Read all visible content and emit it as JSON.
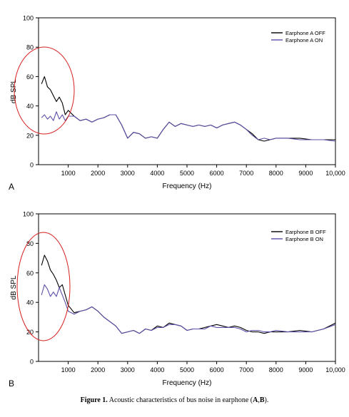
{
  "chart_data": [
    {
      "type": "line",
      "panel_label": "A",
      "xlabel": "Frequency (Hz)",
      "ylabel": "dB SPL",
      "xlim": [
        0,
        10000
      ],
      "ylim": [
        0,
        100
      ],
      "xticks": [
        1000,
        2000,
        3000,
        4000,
        5000,
        6000,
        7000,
        8000,
        9000,
        10000
      ],
      "xtick_labels": [
        "1000",
        "2000",
        "3000",
        "4000",
        "5000",
        "6000",
        "7000",
        "8000",
        "9000",
        "10,000"
      ],
      "yticks": [
        0,
        20,
        40,
        60,
        80,
        100
      ],
      "ytick_labels": [
        "0",
        "20",
        "40",
        "60",
        "80",
        "100"
      ],
      "legend_position": "top-right",
      "series": [
        {
          "name": "Earphone A OFF",
          "color": "#000000",
          "x": [
            100,
            200,
            300,
            400,
            500,
            600,
            700,
            800,
            900,
            1000,
            1200,
            1400,
            1600,
            1800,
            2000,
            2200,
            2400,
            2600,
            2800,
            3000,
            3200,
            3400,
            3600,
            3800,
            4000,
            4200,
            4400,
            4600,
            4800,
            5000,
            5200,
            5400,
            5600,
            5800,
            6000,
            6200,
            6400,
            6600,
            6800,
            7000,
            7200,
            7400,
            7600,
            7800,
            8000,
            8400,
            8800,
            9200,
            9600,
            10000
          ],
          "y": [
            55,
            60,
            53,
            51,
            47,
            43,
            46,
            42,
            34,
            37,
            33,
            30,
            31,
            29,
            31,
            32,
            34,
            34,
            27,
            18,
            22,
            21,
            18,
            19,
            18,
            24,
            29,
            26,
            28,
            27,
            26,
            27,
            26,
            27,
            25,
            27,
            28,
            29,
            27,
            24,
            21,
            17,
            16,
            17,
            18,
            18,
            18,
            17,
            17,
            17
          ]
        },
        {
          "name": "Earphone A ON",
          "color": "#5b4fa8",
          "x": [
            100,
            200,
            300,
            400,
            500,
            600,
            700,
            800,
            900,
            1000,
            1200,
            1400,
            1600,
            1800,
            2000,
            2200,
            2400,
            2600,
            2800,
            3000,
            3200,
            3400,
            3600,
            3800,
            4000,
            4200,
            4400,
            4600,
            4800,
            5000,
            5200,
            5400,
            5600,
            5800,
            6000,
            6200,
            6400,
            6600,
            6800,
            7000,
            7200,
            7400,
            7600,
            7800,
            8000,
            8400,
            8800,
            9200,
            9600,
            10000
          ],
          "y": [
            32,
            34,
            31,
            33,
            30,
            36,
            31,
            34,
            30,
            33,
            33,
            30,
            31,
            29,
            31,
            32,
            34,
            34,
            27,
            18,
            22,
            21,
            18,
            19,
            18,
            24,
            29,
            26,
            28,
            27,
            26,
            27,
            26,
            27,
            25,
            27,
            28,
            29,
            27,
            24,
            20,
            17,
            18,
            17,
            18,
            18,
            17,
            17,
            17,
            16
          ]
        }
      ]
    },
    {
      "type": "line",
      "panel_label": "B",
      "xlabel": "Frequency (Hz)",
      "ylabel": "dB SPL",
      "xlim": [
        0,
        10000
      ],
      "ylim": [
        0,
        100
      ],
      "xticks": [
        1000,
        2000,
        3000,
        4000,
        5000,
        6000,
        7000,
        8000,
        9000,
        10000
      ],
      "xtick_labels": [
        "1000",
        "2000",
        "3000",
        "4000",
        "5000",
        "6000",
        "7000",
        "8000",
        "9000",
        "10,000"
      ],
      "yticks": [
        0,
        20,
        40,
        60,
        80,
        100
      ],
      "ytick_labels": [
        "0",
        "20",
        "40",
        "60",
        "80",
        "100"
      ],
      "legend_position": "top-right",
      "series": [
        {
          "name": "Earphone B OFF",
          "color": "#000000",
          "x": [
            100,
            200,
            300,
            400,
            500,
            600,
            700,
            800,
            900,
            1000,
            1200,
            1400,
            1600,
            1800,
            2000,
            2200,
            2400,
            2600,
            2800,
            3000,
            3200,
            3400,
            3600,
            3800,
            4000,
            4200,
            4400,
            4600,
            4800,
            5000,
            5200,
            5400,
            5600,
            5800,
            6000,
            6200,
            6400,
            6600,
            6800,
            7000,
            7200,
            7400,
            7600,
            7800,
            8000,
            8400,
            8800,
            9200,
            9600,
            10000
          ],
          "y": [
            65,
            72,
            68,
            62,
            59,
            55,
            50,
            52,
            45,
            38,
            33,
            34,
            35,
            37,
            34,
            30,
            27,
            24,
            19,
            20,
            21,
            19,
            22,
            21,
            24,
            23,
            26,
            25,
            24,
            21,
            22,
            22,
            23,
            24,
            25,
            24,
            23,
            24,
            23,
            21,
            20,
            20,
            19,
            20,
            20,
            20,
            21,
            20,
            22,
            26
          ]
        },
        {
          "name": "Earphone B ON",
          "color": "#5b4fa8",
          "x": [
            100,
            200,
            300,
            400,
            500,
            600,
            700,
            800,
            900,
            1000,
            1200,
            1400,
            1600,
            1800,
            2000,
            2200,
            2400,
            2600,
            2800,
            3000,
            3200,
            3400,
            3600,
            3800,
            4000,
            4200,
            4400,
            4600,
            4800,
            5000,
            5200,
            5400,
            5600,
            5800,
            6000,
            6200,
            6400,
            6600,
            6800,
            7000,
            7200,
            7400,
            7600,
            7800,
            8000,
            8400,
            8800,
            9200,
            9600,
            10000
          ],
          "y": [
            45,
            52,
            49,
            44,
            47,
            44,
            50,
            45,
            40,
            34,
            32,
            34,
            35,
            37,
            34,
            30,
            27,
            24,
            19,
            20,
            21,
            19,
            22,
            21,
            23,
            23,
            25,
            25,
            24,
            21,
            22,
            22,
            22,
            24,
            23,
            23,
            23,
            23,
            22,
            20,
            21,
            21,
            20,
            20,
            21,
            20,
            20,
            20,
            22,
            25
          ]
        }
      ]
    }
  ],
  "caption": {
    "figure_label": "Figure 1.",
    "text": "Acoustic characteristics of bus noise in earphone (",
    "ref_a": "A",
    "sep": ",",
    "ref_b": "B",
    "end": ")."
  }
}
